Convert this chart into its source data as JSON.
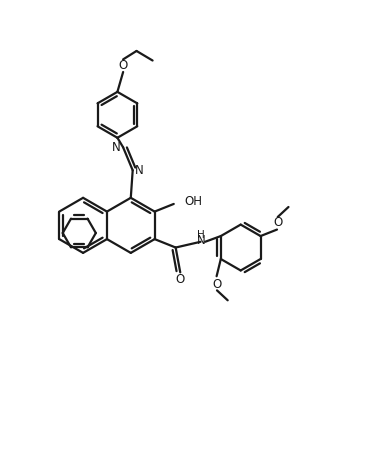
{
  "background_color": "#ffffff",
  "line_color": "#1a1a1a",
  "line_width": 1.6,
  "figsize": [
    3.88,
    4.66
  ],
  "dpi": 100,
  "xlim": [
    0,
    10
  ],
  "ylim": [
    0,
    12
  ]
}
